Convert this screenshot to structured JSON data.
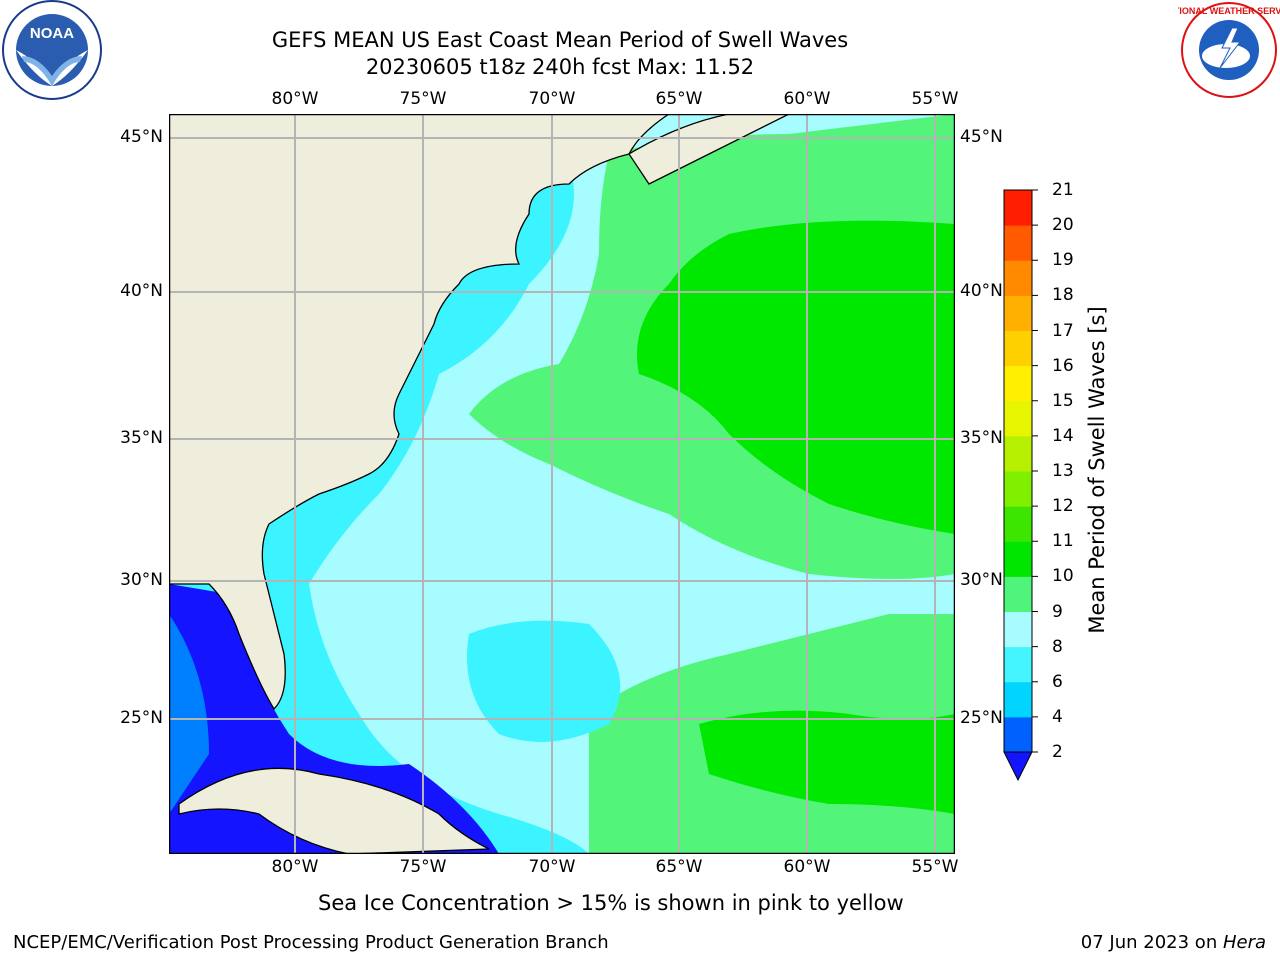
{
  "title_line1": "GEFS MEAN US East Coast Mean Period of Swell Waves",
  "title_line2": "20230605 t18z 240h fcst   Max: 11.52",
  "lon_labels": [
    "80°W",
    "75°W",
    "70°W",
    "65°W",
    "60°W",
    "55°W"
  ],
  "lat_labels": [
    "45°N",
    "40°N",
    "35°N",
    "30°N",
    "25°N"
  ],
  "colorbar": {
    "label": "Mean Period of Swell Waves [s]",
    "ticks": [
      "2",
      "4",
      "6",
      "8",
      "9",
      "10",
      "11",
      "12",
      "13",
      "14",
      "15",
      "16",
      "17",
      "18",
      "19",
      "20",
      "21"
    ],
    "colors": [
      "#0061ff",
      "#00d4ff",
      "#44f5ff",
      "#a8fcff",
      "#4ff57a",
      "#00e600",
      "#3de600",
      "#80f000",
      "#b6f000",
      "#e6f500",
      "#fff000",
      "#ffd000",
      "#ffb000",
      "#ff8a00",
      "#ff5a00",
      "#ff1e00"
    ],
    "extend_color": "#1414ff"
  },
  "map_colors": {
    "land": "#efeedc",
    "c_lt4": "#1414ff",
    "c_4_6": "#0080ff",
    "c_6_8": "#00e8ff",
    "c_8_9": "#3cf4ff",
    "c_9_10": "#a6fcff",
    "c_10_11": "#52f57a",
    "c_11_12": "#00e800",
    "grid": "#b4b4b4"
  },
  "caption": "Sea Ice Concentration > 15% is shown in pink to yellow",
  "footer_left": "NCEP/EMC/Verification Post Processing Product Generation Branch",
  "footer_date": "07 Jun 2023 on ",
  "footer_machine": "Hera",
  "noaa_logo_text": "NOAA",
  "nws_logo_text": "NATIONAL WEATHER SERVICE"
}
